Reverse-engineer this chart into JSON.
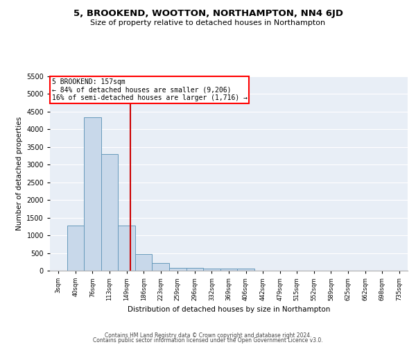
{
  "title": "5, BROOKEND, WOOTTON, NORTHAMPTON, NN4 6JD",
  "subtitle": "Size of property relative to detached houses in Northampton",
  "xlabel": "Distribution of detached houses by size in Northampton",
  "ylabel": "Number of detached properties",
  "bar_color": "#c8d8ea",
  "bar_edge_color": "#6699bb",
  "background_color": "#e8eef6",
  "grid_color": "#ffffff",
  "categories": [
    "3sqm",
    "40sqm",
    "76sqm",
    "113sqm",
    "149sqm",
    "186sqm",
    "223sqm",
    "259sqm",
    "296sqm",
    "332sqm",
    "369sqm",
    "406sqm",
    "442sqm",
    "479sqm",
    "515sqm",
    "552sqm",
    "589sqm",
    "625sqm",
    "662sqm",
    "698sqm",
    "735sqm"
  ],
  "values": [
    0,
    1270,
    4350,
    3300,
    1270,
    480,
    210,
    85,
    70,
    55,
    55,
    50,
    0,
    0,
    0,
    0,
    0,
    0,
    0,
    0,
    0
  ],
  "ylim": [
    0,
    5500
  ],
  "yticks": [
    0,
    500,
    1000,
    1500,
    2000,
    2500,
    3000,
    3500,
    4000,
    4500,
    5000,
    5500
  ],
  "vline_x_index": 4.22,
  "vline_color": "#cc0000",
  "annotation_text": "5 BROOKEND: 157sqm\n← 84% of detached houses are smaller (9,206)\n16% of semi-detached houses are larger (1,716) →",
  "footer1": "Contains HM Land Registry data © Crown copyright and database right 2024.",
  "footer2": "Contains public sector information licensed under the Open Government Licence v3.0."
}
